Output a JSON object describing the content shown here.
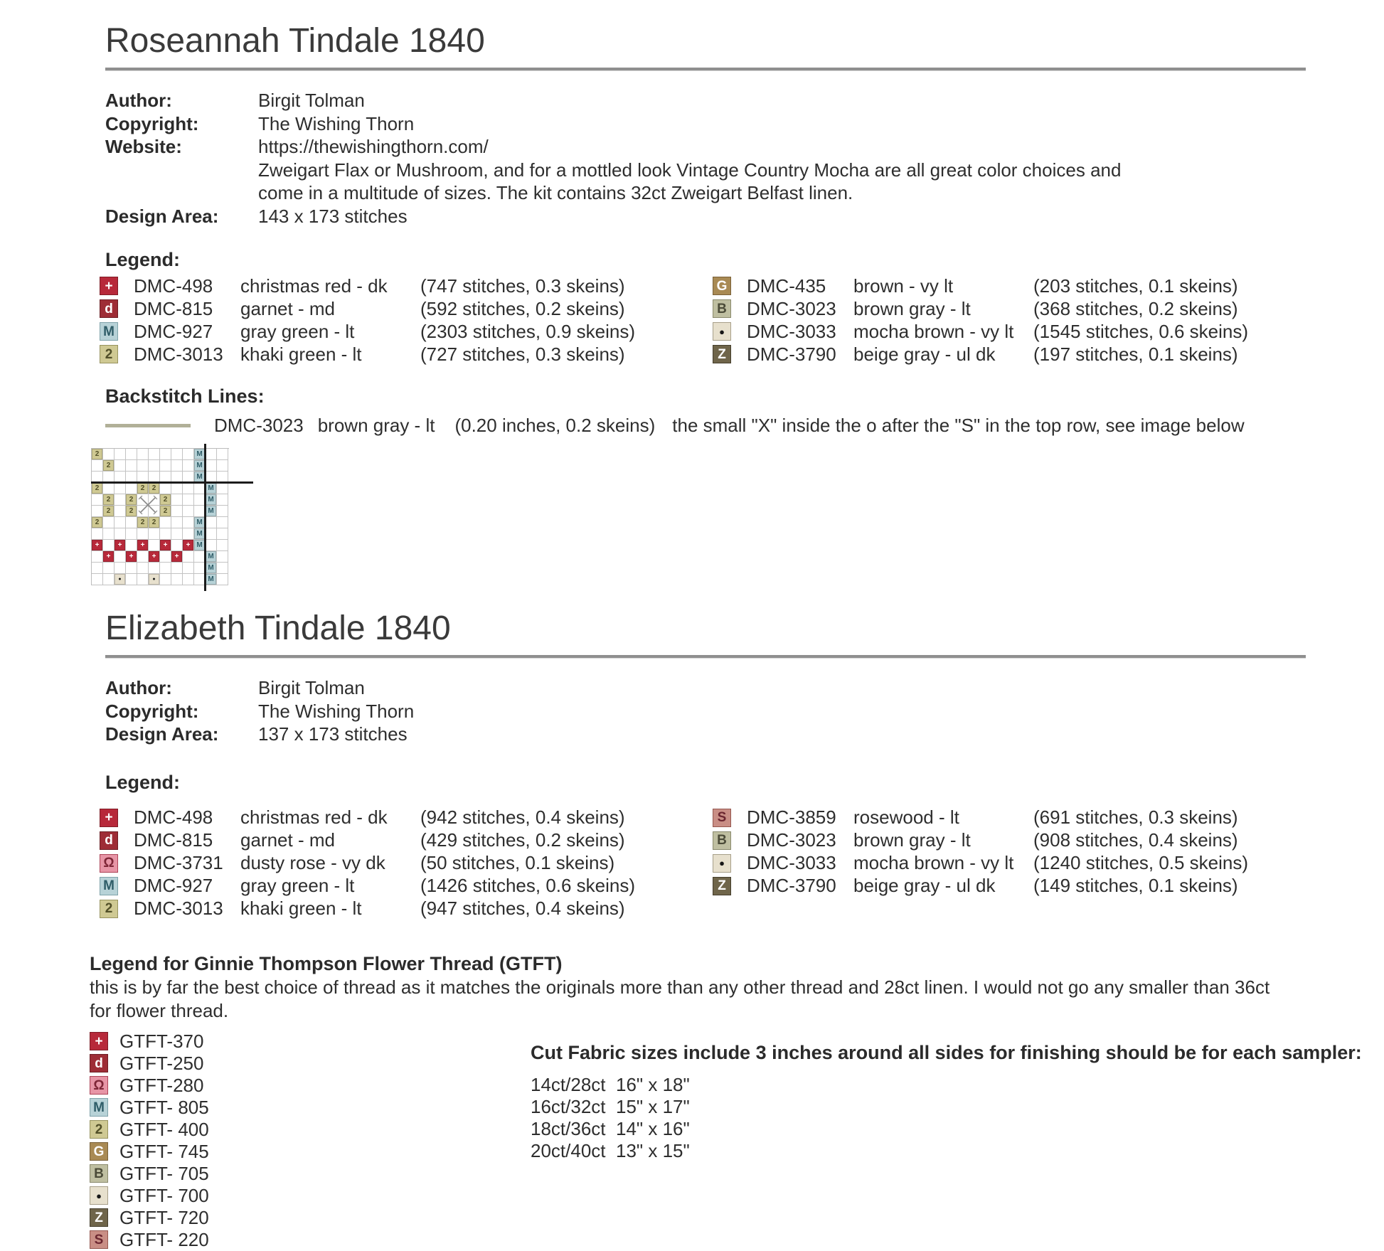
{
  "symbols": {
    "plus": {
      "glyph": "+",
      "bg": "#b7293a",
      "fg": "#ffffff",
      "border": "#801c26"
    },
    "d": {
      "glyph": "d",
      "bg": "#9e2d36",
      "fg": "#ffffff",
      "border": "#6d1e24"
    },
    "omega": {
      "glyph": "Ω",
      "bg": "#e795a6",
      "fg": "#7e2637",
      "border": "#ad4256"
    },
    "M": {
      "glyph": "M",
      "bg": "#b7d2d7",
      "fg": "#2f5d68",
      "border": "#7fa3aa"
    },
    "two": {
      "glyph": "2",
      "bg": "#cfc993",
      "fg": "#514f28",
      "border": "#97935e"
    },
    "G": {
      "glyph": "G",
      "bg": "#a98a54",
      "fg": "#ffffff",
      "border": "#7a6138"
    },
    "B": {
      "glyph": "B",
      "bg": "#bfbfa1",
      "fg": "#4b4b38",
      "border": "#8a8a6d"
    },
    "dot": {
      "glyph": "●",
      "bg": "#e7e0cd",
      "fg": "#171717",
      "border": "#a79f89"
    },
    "Z": {
      "glyph": "Z",
      "bg": "#6f654a",
      "fg": "#ffffff",
      "border": "#453e2c"
    },
    "S": {
      "glyph": "S",
      "bg": "#c98e85",
      "fg": "#6b2630",
      "border": "#95574f"
    }
  },
  "sections": [
    {
      "title": "Roseannah Tindale 1840",
      "info": {
        "author_label": "Author:",
        "author": "Birgit Tolman",
        "copyright_label": "Copyright:",
        "copyright": "The Wishing Thorn",
        "website_label": "Website:",
        "website": "https://thewishingthorn.com/",
        "desc_line1": "Zweigart Flax or Mushroom, and for a mottled look Vintage Country Mocha are all great color choices and",
        "desc_line2": "come in a multitude of sizes. The kit contains 32ct Zweigart Belfast linen.",
        "design_area_label": "Design Area:",
        "design_area": "143 x 173 stitches"
      },
      "legend_label": "Legend:",
      "legend_left": [
        {
          "symbol_key": "plus",
          "code": "DMC-498",
          "name": "christmas red - dk",
          "amount": "(747 stitches, 0.3 skeins)"
        },
        {
          "symbol_key": "d",
          "code": "DMC-815",
          "name": "garnet - md",
          "amount": "(592 stitches, 0.2 skeins)"
        },
        {
          "symbol_key": "M",
          "code": "DMC-927",
          "name": "gray green - lt",
          "amount": "(2303 stitches, 0.9 skeins)"
        },
        {
          "symbol_key": "two",
          "code": "DMC-3013",
          "name": "khaki green - lt",
          "amount": "(727 stitches, 0.3 skeins)"
        }
      ],
      "legend_right": [
        {
          "symbol_key": "G",
          "code": "DMC-435",
          "name": "brown - vy lt",
          "amount": "(203 stitches, 0.1 skeins)"
        },
        {
          "symbol_key": "B",
          "code": "DMC-3023",
          "name": "brown gray - lt",
          "amount": "(368 stitches, 0.2 skeins)"
        },
        {
          "symbol_key": "dot",
          "code": "DMC-3033",
          "name": "mocha brown - vy lt",
          "amount": "(1545 stitches, 0.6 skeins)"
        },
        {
          "symbol_key": "Z",
          "code": "DMC-3790",
          "name": "beige gray - ul dk",
          "amount": "(197 stitches, 0.1 skeins)"
        }
      ],
      "backstitch_label": "Backstitch Lines:",
      "backstitch": {
        "line_color": "#b1b098",
        "code": "DMC-3023",
        "name": "brown gray - lt",
        "amount": "(0.20 inches, 0.2 skeins)",
        "note": "the small \"X\" inside the o after the \"S\" in the top row, see image below"
      }
    },
    {
      "title": "Elizabeth Tindale 1840",
      "info": {
        "author_label": "Author:",
        "author": "Birgit Tolman",
        "copyright_label": "Copyright:",
        "copyright": "The Wishing Thorn",
        "design_area_label": "Design Area:",
        "design_area": "137 x 173 stitches"
      },
      "legend_label": "Legend:",
      "legend_left": [
        {
          "symbol_key": "plus",
          "code": "DMC-498",
          "name": "christmas red - dk",
          "amount": "(942 stitches, 0.4 skeins)"
        },
        {
          "symbol_key": "d",
          "code": "DMC-815",
          "name": "garnet - md",
          "amount": "(429 stitches, 0.2 skeins)"
        },
        {
          "symbol_key": "omega",
          "code": "DMC-3731",
          "name": "dusty rose - vy dk",
          "amount": "(50 stitches, 0.1 skeins)"
        },
        {
          "symbol_key": "M",
          "code": "DMC-927",
          "name": "gray green - lt",
          "amount": "(1426 stitches, 0.6 skeins)"
        },
        {
          "symbol_key": "two",
          "code": "DMC-3013",
          "name": "khaki green - lt",
          "amount": "(947 stitches, 0.4 skeins)"
        }
      ],
      "legend_right": [
        {
          "symbol_key": "S",
          "code": "DMC-3859",
          "name": "rosewood - lt",
          "amount": "(691 stitches, 0.3 skeins)"
        },
        {
          "symbol_key": "B",
          "code": "DMC-3023",
          "name": "brown gray - lt",
          "amount": "(908 stitches, 0.4 skeins)"
        },
        {
          "symbol_key": "dot",
          "code": "DMC-3033",
          "name": "mocha brown - vy lt",
          "amount": "(1240 stitches, 0.5 skeins)"
        },
        {
          "symbol_key": "Z",
          "code": "DMC-3790",
          "name": "beige gray - ul dk",
          "amount": "(149 stitches, 0.1 skeins)"
        }
      ]
    }
  ],
  "gtft": {
    "heading": "Legend for Ginnie Thompson Flower Thread (GTFT)",
    "note_line1": "this is by far the best choice of thread as it matches the originals more than any other thread and 28ct linen. I would not go any smaller than 36ct",
    "note_line2": "for flower thread.",
    "items": [
      {
        "symbol_key": "plus",
        "code": "GTFT-370"
      },
      {
        "symbol_key": "d",
        "code": "GTFT-250"
      },
      {
        "symbol_key": "omega",
        "code": "GTFT-280"
      },
      {
        "symbol_key": "M",
        "code": "GTFT- 805"
      },
      {
        "symbol_key": "two",
        "code": "GTFT- 400"
      },
      {
        "symbol_key": "G",
        "code": "GTFT- 745"
      },
      {
        "symbol_key": "B",
        "code": "GTFT- 705"
      },
      {
        "symbol_key": "dot",
        "code": "GTFT- 700"
      },
      {
        "symbol_key": "Z",
        "code": "GTFT- 720"
      },
      {
        "symbol_key": "S",
        "code": "GTFT- 220"
      }
    ]
  },
  "fabric": {
    "heading": "Cut Fabric sizes include 3 inches around all sides for finishing should be for each sampler:",
    "rows": [
      {
        "count": "14ct/28ct",
        "size": "16\" x 18\""
      },
      {
        "count": "16ct/32ct",
        "size": "15\" x 17\""
      },
      {
        "count": "18ct/36ct",
        "size": "14\" x 16\""
      },
      {
        "count": "20ct/40ct",
        "size": "13\" x 15\""
      }
    ]
  },
  "stitch_chart": {
    "cols": 12,
    "rows": 12,
    "cells": [
      "k........b..",
      ".k.......b..",
      ".........b..",
      "k...kk....b.",
      ".k.k..k...b.",
      ".k.k..k...b.",
      "k...kk...b..",
      ".........b..",
      "r.r.r.r.rb..",
      ".r.r.r.r..b.",
      "..........b.",
      "..d..d....b."
    ],
    "cell_types": {
      "k": "khaki green 2 (DMC-3013)",
      "b": "gray green M (DMC-927)",
      "r": "christmas red + (DMC-498)",
      "d": "mocha brown dot (DMC-3033)"
    },
    "thick_hline_after_row": 3,
    "thick_vline_after_col": 10,
    "x_mark": {
      "row": 5,
      "col": 5,
      "span": 2
    }
  }
}
